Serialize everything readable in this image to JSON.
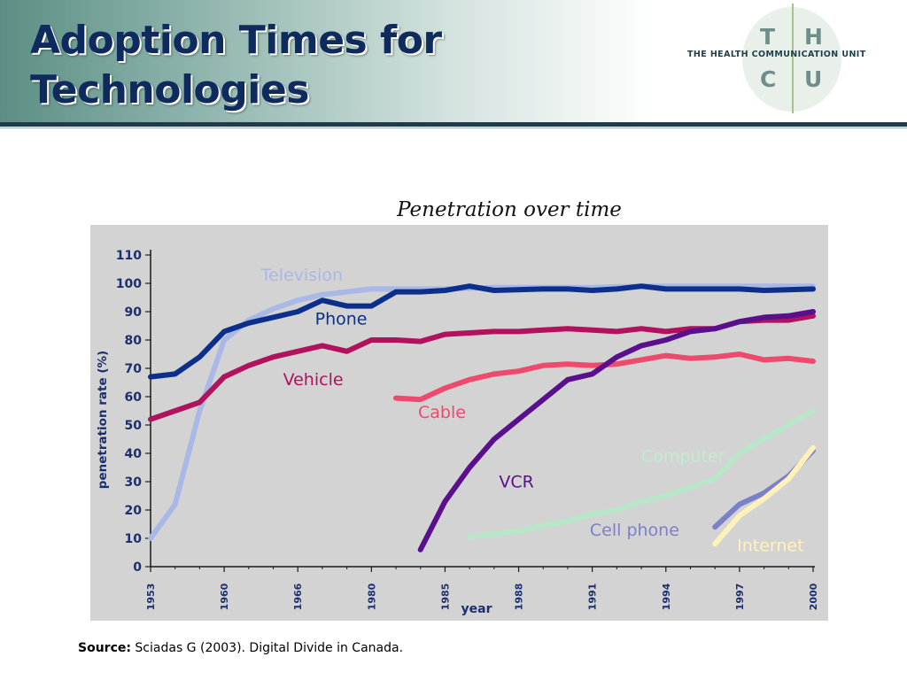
{
  "slide": {
    "title_line1": "Adoption Times for",
    "title_line2": "Technologies",
    "source_label": "Source:",
    "source_text": "Sciadas G (2003). Digital Divide in Canada."
  },
  "logo": {
    "letters": [
      "T",
      "H",
      "C",
      "U"
    ],
    "unit_text": "THE HEALTH COMMUNICATION UNIT"
  },
  "chart_data": {
    "type": "line",
    "title": "Penetration over time",
    "xlabel": "year",
    "ylabel": "penetration rate (%)",
    "x_tick_labels": [
      "1953",
      "1960",
      "1966",
      "1980",
      "1985",
      "1988",
      "1991",
      "1994",
      "1997",
      "2000"
    ],
    "y_ticks": [
      "0",
      "10",
      "20",
      "30",
      "40",
      "50",
      "60",
      "70",
      "80",
      "90",
      "100",
      "110"
    ],
    "ylim": [
      0,
      110
    ],
    "x_index_range": [
      0,
      27
    ],
    "grid": false,
    "background": "#d3d3d3",
    "series": [
      {
        "name": "Television",
        "color": "#a9b8e6",
        "points": [
          [
            0,
            10
          ],
          [
            1,
            22
          ],
          [
            2,
            55
          ],
          [
            3,
            80
          ],
          [
            4,
            87
          ],
          [
            5,
            91
          ],
          [
            6,
            94
          ],
          [
            7,
            96
          ],
          [
            8,
            97
          ],
          [
            9,
            98
          ],
          [
            10,
            98
          ],
          [
            12,
            98
          ],
          [
            14,
            98.5
          ],
          [
            16,
            98.5
          ],
          [
            18,
            98.5
          ],
          [
            20,
            99
          ],
          [
            22,
            99
          ],
          [
            24,
            99
          ],
          [
            26,
            99
          ],
          [
            27,
            99
          ]
        ]
      },
      {
        "name": "Phone",
        "color": "#0b2f8a",
        "points": [
          [
            0,
            67
          ],
          [
            1,
            68
          ],
          [
            2,
            74
          ],
          [
            3,
            83
          ],
          [
            4,
            86
          ],
          [
            5,
            88
          ],
          [
            6,
            90
          ],
          [
            7,
            94
          ],
          [
            8,
            92
          ],
          [
            9,
            92
          ],
          [
            10,
            97
          ],
          [
            11,
            97
          ],
          [
            12,
            97.5
          ],
          [
            13,
            99
          ],
          [
            14,
            97.5
          ],
          [
            16,
            98
          ],
          [
            17,
            98
          ],
          [
            18,
            97.5
          ],
          [
            19,
            98
          ],
          [
            20,
            99
          ],
          [
            21,
            98
          ],
          [
            22,
            98
          ],
          [
            24,
            98
          ],
          [
            25,
            97.5
          ],
          [
            27,
            98
          ]
        ]
      },
      {
        "name": "Vehicle",
        "color": "#b0125d",
        "points": [
          [
            0,
            52
          ],
          [
            1,
            55
          ],
          [
            2,
            58
          ],
          [
            3,
            67
          ],
          [
            4,
            71
          ],
          [
            5,
            74
          ],
          [
            6,
            76
          ],
          [
            7,
            78
          ],
          [
            8,
            76
          ],
          [
            9,
            80
          ],
          [
            10,
            80
          ],
          [
            11,
            79.5
          ],
          [
            12,
            82
          ],
          [
            13,
            82.5
          ],
          [
            14,
            83
          ],
          [
            15,
            83
          ],
          [
            16,
            83.5
          ],
          [
            17,
            84
          ],
          [
            18,
            83.5
          ],
          [
            19,
            83
          ],
          [
            20,
            84
          ],
          [
            21,
            83
          ],
          [
            22,
            84
          ],
          [
            23,
            84
          ],
          [
            24,
            86.5
          ],
          [
            25,
            87
          ],
          [
            26,
            87
          ],
          [
            27,
            88.5
          ]
        ]
      },
      {
        "name": "Cable",
        "color": "#ee4a6e",
        "points": [
          [
            10,
            59.5
          ],
          [
            11,
            59
          ],
          [
            12,
            63
          ],
          [
            13,
            66
          ],
          [
            14,
            68
          ],
          [
            15,
            69
          ],
          [
            16,
            71
          ],
          [
            17,
            71.5
          ],
          [
            18,
            71
          ],
          [
            19,
            71.5
          ],
          [
            20,
            73
          ],
          [
            21,
            74.5
          ],
          [
            22,
            73.5
          ],
          [
            23,
            74
          ],
          [
            24,
            75
          ],
          [
            25,
            73
          ],
          [
            26,
            73.5
          ],
          [
            27,
            72.5
          ]
        ]
      },
      {
        "name": "VCR",
        "color": "#5a0f8c",
        "points": [
          [
            11,
            6
          ],
          [
            12,
            23
          ],
          [
            13,
            35
          ],
          [
            14,
            45
          ],
          [
            15,
            52
          ],
          [
            16,
            59
          ],
          [
            17,
            66
          ],
          [
            18,
            68
          ],
          [
            19,
            74
          ],
          [
            20,
            78
          ],
          [
            21,
            80
          ],
          [
            22,
            83
          ],
          [
            23,
            84
          ],
          [
            24,
            86.5
          ],
          [
            25,
            88
          ],
          [
            26,
            88.5
          ],
          [
            27,
            90
          ]
        ]
      },
      {
        "name": "Computer",
        "color": "#b8e6c8",
        "points": [
          [
            13,
            10.5
          ],
          [
            14,
            11.5
          ],
          [
            15,
            12.5
          ],
          [
            16,
            14.5
          ],
          [
            17,
            16
          ],
          [
            18,
            18.5
          ],
          [
            19,
            20
          ],
          [
            20,
            23
          ],
          [
            21,
            25
          ],
          [
            22,
            28
          ],
          [
            23,
            31
          ],
          [
            24,
            40
          ],
          [
            25,
            45
          ],
          [
            26,
            50
          ],
          [
            27,
            55
          ]
        ]
      },
      {
        "name": "Cell phone",
        "color": "#7c80c8",
        "points": [
          [
            23,
            14
          ],
          [
            24,
            22
          ],
          [
            25,
            26
          ],
          [
            26,
            32
          ],
          [
            27,
            41
          ]
        ]
      },
      {
        "name": "Internet",
        "color": "#fff2b8",
        "points": [
          [
            23,
            8
          ],
          [
            24,
            18
          ],
          [
            25,
            24
          ],
          [
            26,
            31
          ],
          [
            27,
            42
          ]
        ]
      }
    ]
  }
}
